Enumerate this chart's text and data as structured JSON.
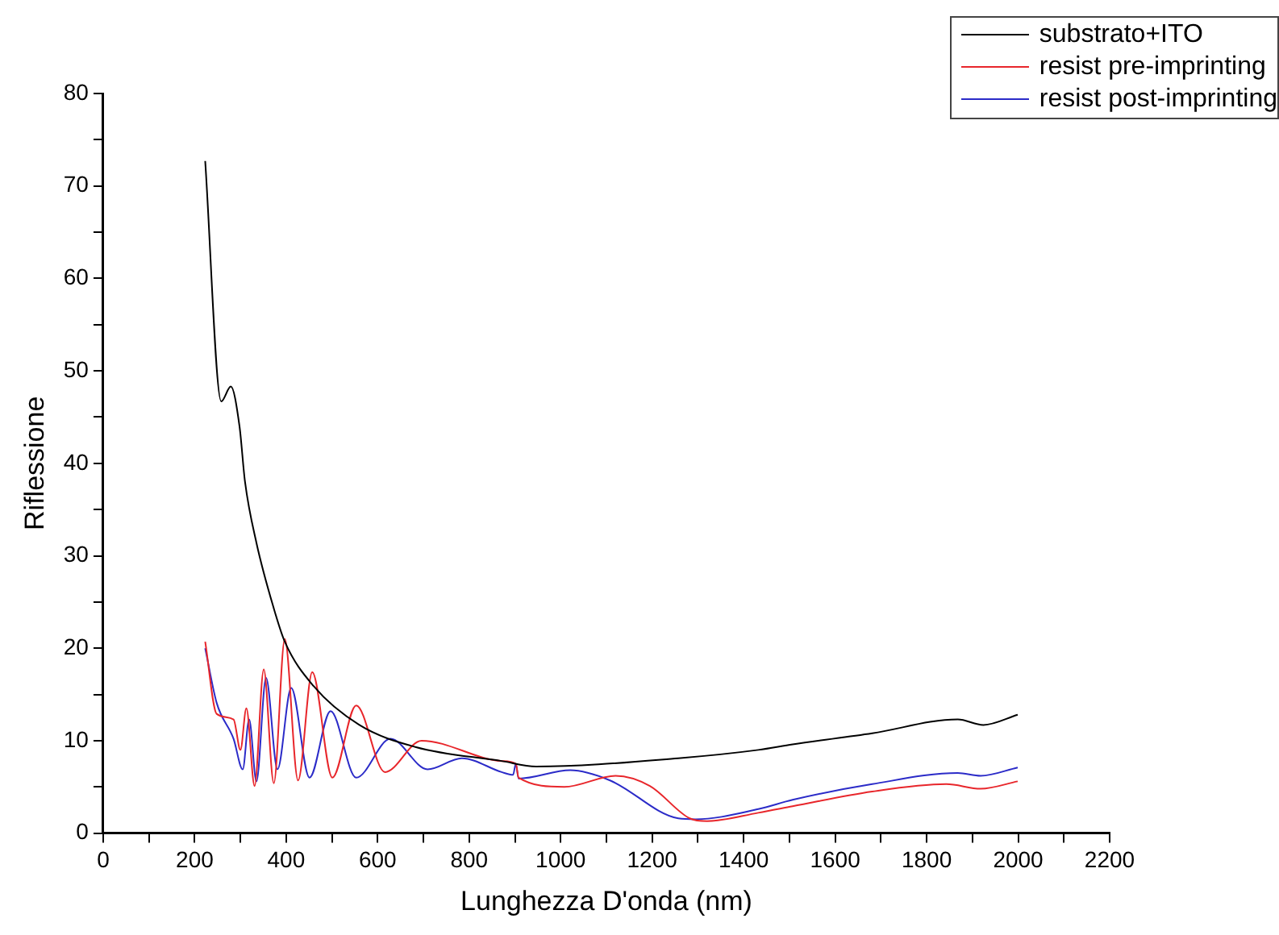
{
  "chart_data": {
    "type": "line",
    "xlabel": "Lunghezza D'onda (nm)",
    "ylabel": "Riflessione",
    "xlim": [
      0,
      2200
    ],
    "ylim": [
      0,
      80
    ],
    "xticks": [
      0,
      {
        "value": 100,
        "label": null
      },
      200,
      {
        "value": 300,
        "label": null
      },
      400,
      {
        "value": 500,
        "label": null
      },
      600,
      {
        "value": 700,
        "label": null
      },
      800,
      {
        "value": 900,
        "label": null
      },
      1000,
      {
        "value": 1100,
        "label": null
      },
      1200,
      {
        "value": 1300,
        "label": null
      },
      1400,
      {
        "value": 1500,
        "label": null
      },
      1600,
      {
        "value": 1700,
        "label": null
      },
      1800,
      {
        "value": 1900,
        "label": null
      },
      2000,
      {
        "value": 2100,
        "label": null
      },
      2200
    ],
    "yticks": [
      0,
      {
        "value": 5,
        "label": null
      },
      10,
      {
        "value": 15,
        "label": null
      },
      20,
      {
        "value": 25,
        "label": null
      },
      30,
      {
        "value": 35,
        "label": null
      },
      40,
      {
        "value": 45,
        "label": null
      },
      50,
      {
        "value": 55,
        "label": null
      },
      60,
      {
        "value": 65,
        "label": null
      },
      70,
      {
        "value": 75,
        "label": null
      },
      80
    ],
    "grid": false,
    "legend": "top right",
    "marker": "none",
    "line_style": "solid",
    "series": [
      {
        "name": "substrato+ITO",
        "color": "#000000",
        "x": [
          223,
          258,
          279,
          298,
          310,
          335,
          373,
          397,
          460,
          560,
          684,
          871,
          946,
          1257,
          1432,
          1507,
          1681,
          1868,
          1924,
          1999
        ],
        "values": [
          72.7,
          46.7,
          48.3,
          44,
          38,
          31.4,
          24.3,
          20.7,
          15.9,
          11.7,
          9.3,
          7.8,
          7.2,
          8.1,
          9.0,
          9.6,
          10.8,
          12.3,
          11.7,
          12.8
        ]
      },
      {
        "name": "resist pre-imprinting",
        "color": "#e8262b",
        "x": [
          223,
          248,
          285,
          300,
          313,
          331,
          351,
          373,
          397,
          426,
          457,
          501,
          553,
          616,
          696,
          871,
          902,
          908,
          1008,
          1120,
          1195,
          1282,
          1320,
          1432,
          1507,
          1681,
          1843,
          1918,
          1999
        ],
        "values": [
          20.7,
          12.9,
          12.3,
          9,
          13.5,
          5.1,
          17.7,
          5.4,
          21,
          5.7,
          17.4,
          6,
          13.8,
          6.6,
          10,
          7.8,
          7.5,
          6.0,
          5.0,
          6.2,
          5.1,
          1.6,
          1.3,
          2.2,
          2.9,
          4.5,
          5.3,
          4.8,
          5.6
        ]
      },
      {
        "name": "resist post-imprinting",
        "color": "#2b2bc8",
        "x": [
          223,
          248,
          285,
          305,
          319,
          335,
          356,
          381,
          411,
          451,
          497,
          553,
          628,
          709,
          784,
          871,
          896,
          902,
          908,
          1021,
          1108,
          1257,
          1295,
          1432,
          1507,
          1681,
          1868,
          1918,
          1999
        ],
        "values": [
          20.0,
          14.1,
          10.2,
          6.9,
          12.3,
          5.6,
          16.8,
          6.9,
          15.7,
          6.0,
          13.2,
          6.0,
          10.2,
          6.9,
          8.1,
          6.6,
          6.3,
          7.5,
          5.9,
          6.8,
          5.7,
          1.6,
          1.5,
          2.6,
          3.6,
          5.3,
          6.5,
          6.2,
          7.1
        ]
      }
    ]
  }
}
